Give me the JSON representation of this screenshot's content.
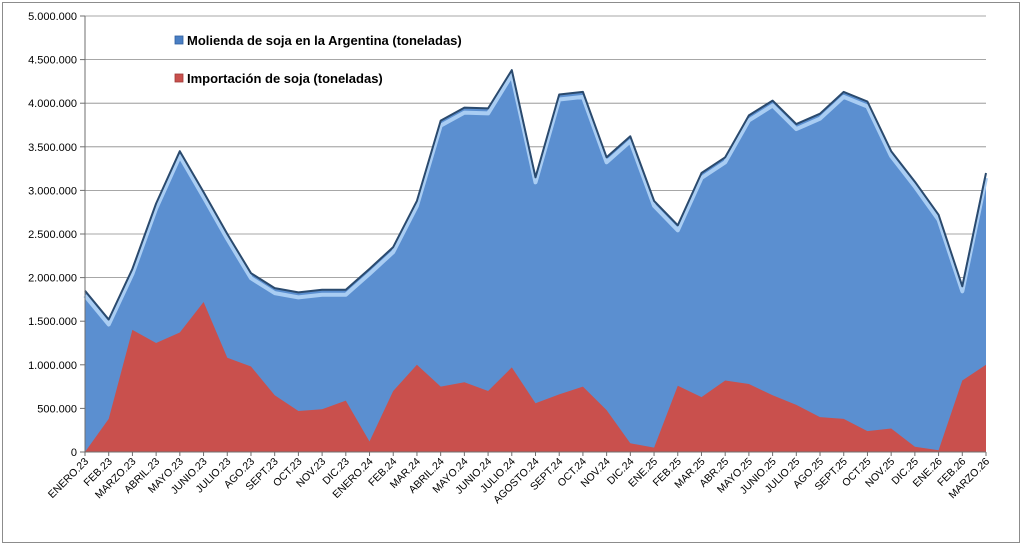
{
  "chart_data": {
    "type": "area",
    "title": "",
    "xlabel": "",
    "ylabel": "",
    "ylim": [
      0,
      5000000
    ],
    "y_tick_step": 500000,
    "y_tick_labels": [
      "0",
      "500.000",
      "1.000.000",
      "1.500.000",
      "2.000.000",
      "2.500.000",
      "3.000.000",
      "3.500.000",
      "4.000.000",
      "4.500.000",
      "5.000.000"
    ],
    "grid": true,
    "legend_position": "top-left",
    "categories": [
      "ENERO.23",
      "FEB.23",
      "MARZO.23",
      "ABRIL.23",
      "MAYO.23",
      "JUNIO.23",
      "JULIO.23",
      "AGO.23",
      "SEPT.23",
      "OCT.23",
      "NOV.23",
      "DIC.23",
      "ENERO.24",
      "FEB.24",
      "MAR.24",
      "ABRIL.24",
      "MAYO.24",
      "JUNIO.24",
      "JULIO.24",
      "AGOSTO.24",
      "SEPT.24",
      "OCT.24",
      "NOV.24",
      "DIC.24",
      "ENE.25",
      "FEB.25",
      "MAR.25",
      "ABR.25",
      "MAYO.25",
      "JUNIO.25",
      "JULIO.25",
      "AGO.25",
      "SEPT.25",
      "OCT.25",
      "NOV.25",
      "DIC.25",
      "ENE.26",
      "FEB.26",
      "MARZO.26"
    ],
    "series": [
      {
        "name": "Molienda de soja en la Argentina (toneladas)",
        "color": "#5b8fd0",
        "values": [
          1850000,
          1520000,
          2100000,
          2850000,
          3450000,
          2980000,
          2500000,
          2050000,
          1880000,
          1830000,
          1860000,
          1860000,
          2100000,
          2350000,
          2880000,
          3800000,
          3950000,
          3940000,
          4380000,
          3150000,
          4100000,
          4130000,
          3380000,
          3620000,
          2880000,
          2600000,
          3200000,
          3380000,
          3860000,
          4030000,
          3760000,
          3880000,
          4130000,
          4020000,
          3450000,
          3100000,
          2720000,
          1900000,
          3200000
        ]
      },
      {
        "name": "Importación de soja (toneladas)",
        "color": "#c9504d",
        "values": [
          0,
          380000,
          1400000,
          1250000,
          1370000,
          1720000,
          1080000,
          980000,
          650000,
          470000,
          490000,
          590000,
          120000,
          700000,
          1000000,
          750000,
          800000,
          700000,
          970000,
          560000,
          660000,
          750000,
          480000,
          100000,
          50000,
          760000,
          630000,
          820000,
          780000,
          650000,
          540000,
          400000,
          380000,
          240000,
          270000,
          60000,
          20000,
          820000,
          1000000
        ]
      }
    ]
  }
}
